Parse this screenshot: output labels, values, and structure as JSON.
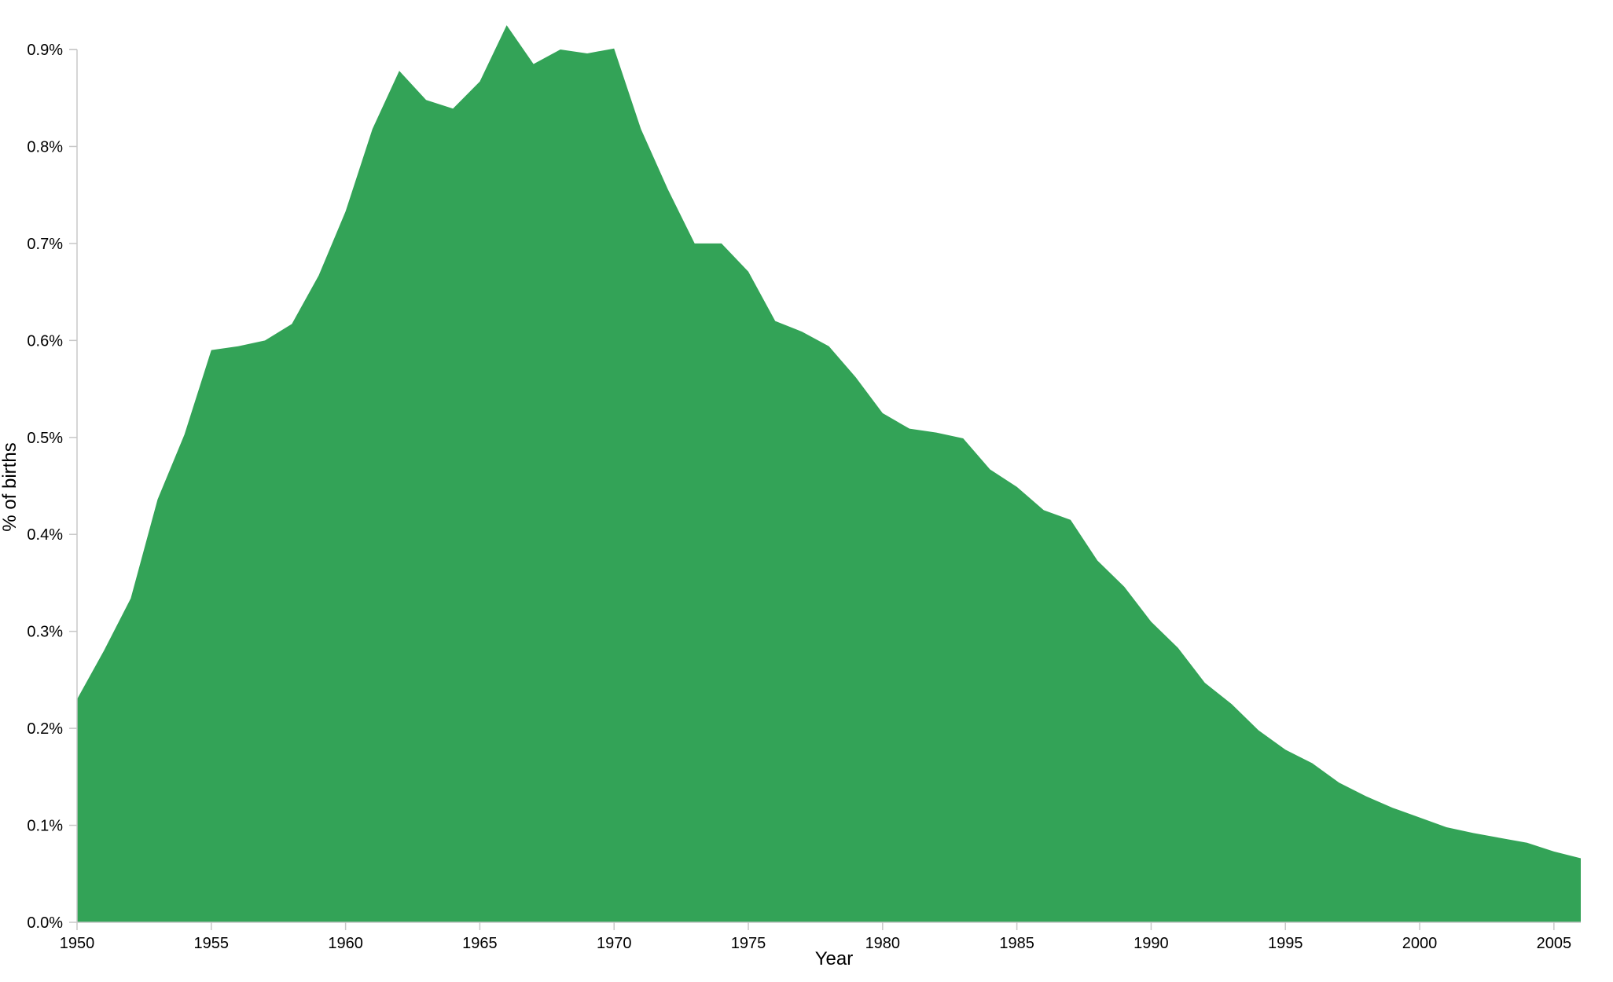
{
  "colors": {
    "area_fill": "#33a357",
    "axis": "#c8c8c8",
    "tick": "#c8c8c8",
    "text": "#000000"
  },
  "chart_data": {
    "type": "area",
    "title": "",
    "xlabel": "Year",
    "ylabel": "% of births",
    "xlim": [
      1950,
      2006
    ],
    "ylim": [
      0,
      0.009
    ],
    "grid": false,
    "x_ticks": [
      "1950",
      "1955",
      "1960",
      "1965",
      "1970",
      "1975",
      "1980",
      "1985",
      "1990",
      "1995",
      "2000",
      "2005"
    ],
    "x_tick_values": [
      1950,
      1955,
      1960,
      1965,
      1970,
      1975,
      1980,
      1985,
      1990,
      1995,
      2000,
      2005
    ],
    "y_ticks": [
      "0.0%",
      "0.1%",
      "0.2%",
      "0.3%",
      "0.4%",
      "0.5%",
      "0.6%",
      "0.7%",
      "0.8%",
      "0.9%"
    ],
    "y_tick_values": [
      0,
      0.001,
      0.002,
      0.003,
      0.004,
      0.005,
      0.006,
      0.007,
      0.008,
      0.009
    ],
    "x": [
      1950,
      1951,
      1952,
      1953,
      1954,
      1955,
      1956,
      1957,
      1958,
      1959,
      1960,
      1961,
      1962,
      1963,
      1964,
      1965,
      1966,
      1967,
      1968,
      1969,
      1970,
      1971,
      1972,
      1973,
      1974,
      1975,
      1976,
      1977,
      1978,
      1979,
      1980,
      1981,
      1982,
      1983,
      1984,
      1985,
      1986,
      1987,
      1988,
      1989,
      1990,
      1991,
      1992,
      1993,
      1994,
      1995,
      1996,
      1997,
      1998,
      1999,
      2000,
      2001,
      2002,
      2003,
      2004,
      2005,
      2006
    ],
    "y": [
      0.0023,
      0.0028,
      0.00334,
      0.00436,
      0.00503,
      0.0059,
      0.00594,
      0.006,
      0.00617,
      0.00667,
      0.00733,
      0.00818,
      0.00878,
      0.00848,
      0.00839,
      0.00867,
      0.00925,
      0.00885,
      0.009,
      0.00896,
      0.00901,
      0.00818,
      0.00756,
      0.007,
      0.007,
      0.00671,
      0.0062,
      0.00609,
      0.00594,
      0.00562,
      0.00525,
      0.00509,
      0.00505,
      0.00499,
      0.00467,
      0.00449,
      0.00425,
      0.00415,
      0.00373,
      0.00346,
      0.0031,
      0.00283,
      0.00247,
      0.00225,
      0.00198,
      0.00178,
      0.00164,
      0.00144,
      0.0013,
      0.00118,
      0.00108,
      0.00098,
      0.00092,
      0.00087,
      0.00082,
      0.00073,
      0.00066
    ]
  }
}
